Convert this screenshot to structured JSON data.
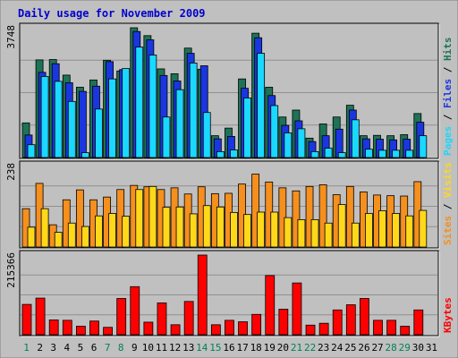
{
  "chart_data": {
    "type": "bar",
    "title": "Daily usage for November 2009",
    "days": [
      "1",
      "2",
      "3",
      "4",
      "5",
      "6",
      "7",
      "8",
      "9",
      "10",
      "11",
      "12",
      "13",
      "14",
      "15",
      "16",
      "17",
      "18",
      "19",
      "20",
      "21",
      "22",
      "23",
      "24",
      "25",
      "26",
      "27",
      "28",
      "29",
      "30",
      "31"
    ],
    "weekend_days": [
      "1",
      "7",
      "8",
      "14",
      "15",
      "21",
      "22",
      "28",
      "29"
    ],
    "colors": {
      "background": "#c0c0c0",
      "frame": "#e0e0e0",
      "title": "#0000cc",
      "gridline": "#909090",
      "hits": "#1d7355",
      "files": "#1a36e0",
      "pages": "#1ad8ff",
      "visits": "#f58f1e",
      "sites": "#ffd81a",
      "kbytes": "#ff0000",
      "weekday_label": "#000000",
      "weekend_label": "#00805a"
    },
    "panels": [
      {
        "id": "hits-files-pages",
        "ymax_label": "3748",
        "ymax": 3748,
        "legend": [
          {
            "text": "Pages",
            "color": "#1ad8ff"
          },
          {
            "text": " / ",
            "color": "#000000"
          },
          {
            "text": "Files",
            "color": "#1a36e0"
          },
          {
            "text": " / ",
            "color": "#000000"
          },
          {
            "text": "Hits",
            "color": "#1d7355"
          }
        ],
        "series": [
          {
            "name": "Hits",
            "color": "#1d7355",
            "values": [
              1000,
              2820,
              2830,
              2380,
              2030,
              2240,
              2810,
              2500,
              3748,
              3520,
              2560,
              2420,
              3160,
              2550,
              630,
              850,
              2270,
              3590,
              2030,
              1170,
              1370,
              560,
              970,
              1170,
              1510,
              630,
              640,
              630,
              660,
              1270,
              0
            ]
          },
          {
            "name": "Files",
            "color": "#1a36e0",
            "values": [
              650,
              2460,
              2710,
              2160,
              1910,
              2060,
              2770,
              2540,
              3640,
              3400,
              2370,
              2210,
              3010,
              2650,
              540,
              610,
              2000,
              3460,
              1790,
              930,
              1060,
              460,
              630,
              820,
              1370,
              540,
              530,
              510,
              530,
              1020,
              0
            ]
          },
          {
            "name": "Pages",
            "color": "#1ad8ff",
            "values": [
              370,
              2340,
              2200,
              1620,
              140,
              1400,
              2270,
              2570,
              3190,
              2960,
              1170,
              1960,
              2730,
              1300,
              170,
              220,
              1720,
              3010,
              1500,
              710,
              830,
              170,
              270,
              140,
              1090,
              240,
              210,
              210,
              210,
              630,
              0
            ]
          }
        ]
      },
      {
        "id": "visits-sites",
        "ymax_label": "238",
        "ymax": 238,
        "legend": [
          {
            "text": "Sites",
            "color": "#f58f1e"
          },
          {
            "text": " / ",
            "color": "#000000"
          },
          {
            "text": "Visits",
            "color": "#ffd81a"
          }
        ],
        "series": [
          {
            "name": "Visits",
            "color": "#f58f1e",
            "values": [
              112,
              186,
              65,
              138,
              167,
              138,
              146,
              168,
              180,
              176,
              168,
              173,
              155,
              176,
              156,
              157,
              184,
              213,
              190,
              173,
              164,
              177,
              182,
              153,
              177,
              161,
              152,
              150,
              149,
              191,
              0
            ]
          },
          {
            "name": "Sites",
            "color": "#ffd81a",
            "values": [
              58,
              112,
              43,
              70,
              60,
              91,
              98,
              90,
              168,
              177,
              116,
              117,
              97,
              121,
              117,
              101,
              95,
              102,
              102,
              86,
              80,
              80,
              70,
              124,
              70,
              98,
              106,
              98,
              91,
              107,
              0
            ]
          }
        ]
      },
      {
        "id": "kbytes",
        "ymax_label": "215366",
        "ymax": 215366,
        "legend": [
          {
            "text": "KBytes",
            "color": "#ff0000"
          }
        ],
        "series": [
          {
            "name": "KBytes",
            "color": "#ff0000",
            "values": [
              82000,
              99000,
              40000,
              39000,
              23000,
              37000,
              20000,
              98000,
              130000,
              34000,
              86000,
              27000,
              90000,
              215366,
              27000,
              39000,
              35000,
              55000,
              160000,
              69000,
              140000,
              26000,
              31000,
              67000,
              81000,
              98000,
              39000,
              39000,
              23000,
              67000,
              0
            ]
          }
        ]
      }
    ]
  }
}
